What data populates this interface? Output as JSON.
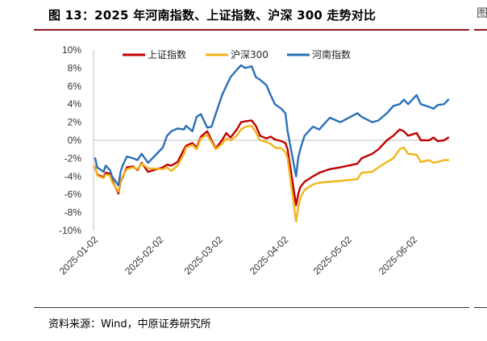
{
  "figure": {
    "title": "图 13：2025 年河南指数、上证指数、沪深 300 走势对比",
    "source": "资料来源：Wind，中原证券研究所",
    "cropped_right_glyph": "图"
  },
  "colors": {
    "rule_top": "#8b1a1a",
    "shanghai": "#c00000",
    "hs300": "#f2b418",
    "henan": "#2a6fb8"
  },
  "chart_data": {
    "type": "line",
    "y_unit": "%",
    "ylim": [
      -10,
      10
    ],
    "y_ticks": [
      10,
      8,
      6,
      4,
      2,
      0,
      -2,
      -4,
      -6,
      -8,
      -10
    ],
    "y_tick_labels": [
      "10%",
      "8%",
      "6%",
      "4%",
      "2%",
      "0%",
      "-2%",
      "-4%",
      "-6%",
      "-8%",
      "-10%"
    ],
    "x_range": [
      "2025-01-02",
      "2025-06-18"
    ],
    "x_tick_labels": [
      "2025-01-02",
      "2025-02-02",
      "2025-03-02",
      "2025-04-02",
      "2025-05-02",
      "2025-06-02"
    ],
    "legend_position": "top",
    "series": [
      {
        "name": "上证指数",
        "color": "#c00000",
        "points": [
          [
            "2025-01-02",
            -3.0
          ],
          [
            "2025-01-03",
            -3.8
          ],
          [
            "2025-01-06",
            -4.1
          ],
          [
            "2025-01-07",
            -3.6
          ],
          [
            "2025-01-09",
            -3.7
          ],
          [
            "2025-01-10",
            -4.4
          ],
          [
            "2025-01-13",
            -5.9
          ],
          [
            "2025-01-14",
            -4.6
          ],
          [
            "2025-01-15",
            -4.1
          ],
          [
            "2025-01-17",
            -3.0
          ],
          [
            "2025-01-20",
            -2.9
          ],
          [
            "2025-01-22",
            -3.3
          ],
          [
            "2025-01-24",
            -2.5
          ],
          [
            "2025-01-27",
            -3.5
          ],
          [
            "2025-02-03",
            -3.0
          ],
          [
            "2025-02-05",
            -2.7
          ],
          [
            "2025-02-07",
            -2.8
          ],
          [
            "2025-02-10",
            -2.4
          ],
          [
            "2025-02-13",
            -1.0
          ],
          [
            "2025-02-14",
            -0.6
          ],
          [
            "2025-02-17",
            -0.3
          ],
          [
            "2025-02-19",
            -0.8
          ],
          [
            "2025-02-21",
            0.4
          ],
          [
            "2025-02-24",
            1.0
          ],
          [
            "2025-02-26",
            0.0
          ],
          [
            "2025-02-28",
            -0.9
          ],
          [
            "2025-03-03",
            0.0
          ],
          [
            "2025-03-05",
            0.8
          ],
          [
            "2025-03-07",
            0.3
          ],
          [
            "2025-03-10",
            1.2
          ],
          [
            "2025-03-12",
            2.0
          ],
          [
            "2025-03-14",
            2.1
          ],
          [
            "2025-03-17",
            2.2
          ],
          [
            "2025-03-19",
            1.6
          ],
          [
            "2025-03-21",
            0.5
          ],
          [
            "2025-03-24",
            0.2
          ],
          [
            "2025-03-26",
            0.4
          ],
          [
            "2025-03-28",
            0.1
          ],
          [
            "2025-03-31",
            -0.1
          ],
          [
            "2025-04-02",
            -0.3
          ],
          [
            "2025-04-03",
            -1.0
          ],
          [
            "2025-04-07",
            -7.2
          ],
          [
            "2025-04-08",
            -6.0
          ],
          [
            "2025-04-09",
            -5.2
          ],
          [
            "2025-04-11",
            -4.6
          ],
          [
            "2025-04-15",
            -4.0
          ],
          [
            "2025-04-18",
            -3.6
          ],
          [
            "2025-04-23",
            -3.2
          ],
          [
            "2025-04-28",
            -3.0
          ],
          [
            "2025-05-06",
            -2.6
          ],
          [
            "2025-05-08",
            -2.0
          ],
          [
            "2025-05-13",
            -1.5
          ],
          [
            "2025-05-16",
            -1.0
          ],
          [
            "2025-05-20",
            0.0
          ],
          [
            "2025-05-23",
            0.5
          ],
          [
            "2025-05-26",
            1.2
          ],
          [
            "2025-05-28",
            1.0
          ],
          [
            "2025-05-30",
            0.5
          ],
          [
            "2025-06-03",
            0.8
          ],
          [
            "2025-06-05",
            0.0
          ],
          [
            "2025-06-09",
            0.0
          ],
          [
            "2025-06-11",
            0.3
          ],
          [
            "2025-06-13",
            -0.1
          ],
          [
            "2025-06-16",
            0.0
          ],
          [
            "2025-06-18",
            0.3
          ]
        ]
      },
      {
        "name": "沪深300",
        "color": "#f2b418",
        "points": [
          [
            "2025-01-02",
            -2.8
          ],
          [
            "2025-01-03",
            -3.9
          ],
          [
            "2025-01-06",
            -4.2
          ],
          [
            "2025-01-07",
            -3.8
          ],
          [
            "2025-01-09",
            -3.9
          ],
          [
            "2025-01-10",
            -4.6
          ],
          [
            "2025-01-13",
            -5.7
          ],
          [
            "2025-01-14",
            -4.5
          ],
          [
            "2025-01-15",
            -4.0
          ],
          [
            "2025-01-17",
            -3.2
          ],
          [
            "2025-01-20",
            -3.0
          ],
          [
            "2025-01-22",
            -3.2
          ],
          [
            "2025-01-24",
            -2.6
          ],
          [
            "2025-01-27",
            -3.1
          ],
          [
            "2025-02-03",
            -3.2
          ],
          [
            "2025-02-05",
            -3.0
          ],
          [
            "2025-02-07",
            -3.4
          ],
          [
            "2025-02-10",
            -2.8
          ],
          [
            "2025-02-13",
            -1.5
          ],
          [
            "2025-02-14",
            -0.8
          ],
          [
            "2025-02-17",
            -0.5
          ],
          [
            "2025-02-19",
            -1.0
          ],
          [
            "2025-02-21",
            0.2
          ],
          [
            "2025-02-24",
            0.6
          ],
          [
            "2025-02-26",
            -0.2
          ],
          [
            "2025-02-28",
            -1.0
          ],
          [
            "2025-03-03",
            -0.4
          ],
          [
            "2025-03-05",
            0.2
          ],
          [
            "2025-03-07",
            0.0
          ],
          [
            "2025-03-10",
            0.5
          ],
          [
            "2025-03-12",
            1.2
          ],
          [
            "2025-03-14",
            1.5
          ],
          [
            "2025-03-17",
            1.6
          ],
          [
            "2025-03-19",
            0.9
          ],
          [
            "2025-03-21",
            0.0
          ],
          [
            "2025-03-24",
            -0.2
          ],
          [
            "2025-03-26",
            -0.4
          ],
          [
            "2025-03-28",
            -0.8
          ],
          [
            "2025-03-31",
            -0.9
          ],
          [
            "2025-04-02",
            -1.3
          ],
          [
            "2025-04-03",
            -2.0
          ],
          [
            "2025-04-07",
            -9.0
          ],
          [
            "2025-04-08",
            -7.5
          ],
          [
            "2025-04-09",
            -6.4
          ],
          [
            "2025-04-11",
            -5.5
          ],
          [
            "2025-04-15",
            -4.9
          ],
          [
            "2025-04-18",
            -4.7
          ],
          [
            "2025-04-23",
            -4.6
          ],
          [
            "2025-04-28",
            -4.5
          ],
          [
            "2025-05-06",
            -4.3
          ],
          [
            "2025-05-08",
            -3.6
          ],
          [
            "2025-05-13",
            -3.5
          ],
          [
            "2025-05-16",
            -3.0
          ],
          [
            "2025-05-20",
            -2.4
          ],
          [
            "2025-05-23",
            -2.0
          ],
          [
            "2025-05-26",
            -1.0
          ],
          [
            "2025-05-28",
            -0.8
          ],
          [
            "2025-05-30",
            -1.5
          ],
          [
            "2025-06-03",
            -1.6
          ],
          [
            "2025-06-05",
            -2.4
          ],
          [
            "2025-06-09",
            -2.2
          ],
          [
            "2025-06-11",
            -2.5
          ],
          [
            "2025-06-13",
            -2.4
          ],
          [
            "2025-06-16",
            -2.2
          ],
          [
            "2025-06-18",
            -2.2
          ]
        ]
      },
      {
        "name": "河南指数",
        "color": "#2a6fb8",
        "points": [
          [
            "2025-01-02",
            -2.0
          ],
          [
            "2025-01-03",
            -3.0
          ],
          [
            "2025-01-06",
            -3.5
          ],
          [
            "2025-01-07",
            -2.8
          ],
          [
            "2025-01-09",
            -3.3
          ],
          [
            "2025-01-10",
            -4.0
          ],
          [
            "2025-01-13",
            -5.0
          ],
          [
            "2025-01-14",
            -3.5
          ],
          [
            "2025-01-15",
            -2.8
          ],
          [
            "2025-01-17",
            -1.8
          ],
          [
            "2025-01-20",
            -2.0
          ],
          [
            "2025-01-22",
            -2.2
          ],
          [
            "2025-01-24",
            -1.5
          ],
          [
            "2025-01-27",
            -2.5
          ],
          [
            "2025-02-03",
            -0.8
          ],
          [
            "2025-02-05",
            0.5
          ],
          [
            "2025-02-07",
            1.0
          ],
          [
            "2025-02-10",
            1.3
          ],
          [
            "2025-02-13",
            1.2
          ],
          [
            "2025-02-14",
            1.6
          ],
          [
            "2025-02-17",
            1.0
          ],
          [
            "2025-02-19",
            2.6
          ],
          [
            "2025-02-21",
            2.9
          ],
          [
            "2025-02-24",
            1.4
          ],
          [
            "2025-02-26",
            1.5
          ],
          [
            "2025-02-28",
            2.9
          ],
          [
            "2025-03-03",
            5.0
          ],
          [
            "2025-03-05",
            6.0
          ],
          [
            "2025-03-07",
            7.0
          ],
          [
            "2025-03-10",
            7.8
          ],
          [
            "2025-03-12",
            8.3
          ],
          [
            "2025-03-14",
            8.0
          ],
          [
            "2025-03-17",
            8.2
          ],
          [
            "2025-03-19",
            7.0
          ],
          [
            "2025-03-21",
            6.7
          ],
          [
            "2025-03-24",
            6.1
          ],
          [
            "2025-03-26",
            5.0
          ],
          [
            "2025-03-28",
            4.0
          ],
          [
            "2025-03-31",
            3.5
          ],
          [
            "2025-04-02",
            3.0
          ],
          [
            "2025-04-03",
            1.0
          ],
          [
            "2025-04-07",
            -4.0
          ],
          [
            "2025-04-08",
            -2.0
          ],
          [
            "2025-04-09",
            -1.0
          ],
          [
            "2025-04-11",
            0.5
          ],
          [
            "2025-04-15",
            1.5
          ],
          [
            "2025-04-18",
            1.2
          ],
          [
            "2025-04-23",
            2.5
          ],
          [
            "2025-04-28",
            2.0
          ],
          [
            "2025-05-06",
            3.0
          ],
          [
            "2025-05-08",
            2.6
          ],
          [
            "2025-05-13",
            2.0
          ],
          [
            "2025-05-16",
            2.2
          ],
          [
            "2025-05-20",
            3.0
          ],
          [
            "2025-05-23",
            3.8
          ],
          [
            "2025-05-26",
            4.0
          ],
          [
            "2025-05-28",
            4.5
          ],
          [
            "2025-05-30",
            4.0
          ],
          [
            "2025-06-03",
            5.0
          ],
          [
            "2025-06-05",
            4.0
          ],
          [
            "2025-06-09",
            3.7
          ],
          [
            "2025-06-11",
            3.5
          ],
          [
            "2025-06-13",
            3.9
          ],
          [
            "2025-06-16",
            4.0
          ],
          [
            "2025-06-18",
            4.5
          ]
        ]
      }
    ]
  }
}
